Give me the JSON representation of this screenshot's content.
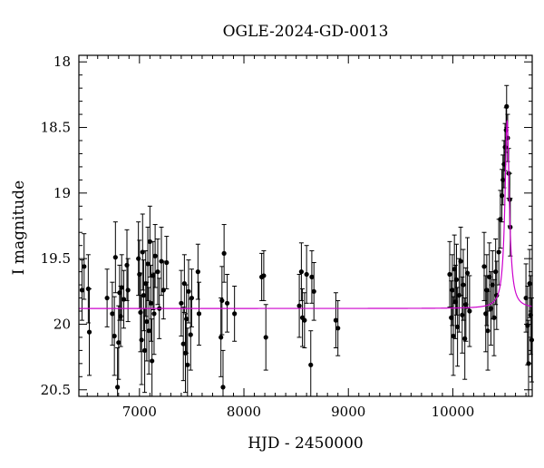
{
  "chart_data": {
    "type": "scatter",
    "title": "OGLE-2024-GD-0013",
    "xlabel": "HJD - 2450000",
    "ylabel": "I magnitude",
    "xlim": [
      6420,
      10760
    ],
    "ylim": [
      20.55,
      17.95
    ],
    "y_inverted": true,
    "grid": false,
    "xticks": [
      7000,
      8000,
      9000,
      10000
    ],
    "yticks": [
      18,
      18.5,
      19,
      19.5,
      20,
      20.5
    ],
    "xtick_labels": [
      "7000",
      "8000",
      "9000",
      "10000"
    ],
    "ytick_labels": [
      "18",
      "18.5",
      "19",
      "19.5",
      "20",
      "20.5"
    ],
    "colors": {
      "points": "#000000",
      "model": "#cc00cc",
      "frame": "#000000"
    },
    "model": {
      "type": "microlensing",
      "baseline_mag": 19.88,
      "peak_mag": 18.45,
      "t0": 10520,
      "width": 25
    },
    "series": [
      {
        "kind": "observations",
        "points": [
          {
            "x": 6450,
            "y": 19.74,
            "err": 0.23
          },
          {
            "x": 6470,
            "y": 19.56,
            "err": 0.25
          },
          {
            "x": 6510,
            "y": 19.73,
            "err": 0.26
          },
          {
            "x": 6520,
            "y": 20.06,
            "err": 0.33
          },
          {
            "x": 6690,
            "y": 19.8,
            "err": 0.22
          },
          {
            "x": 6740,
            "y": 19.92,
            "err": 0.24
          },
          {
            "x": 6760,
            "y": 20.09,
            "err": 0.3
          },
          {
            "x": 6770,
            "y": 19.49,
            "err": 0.27
          },
          {
            "x": 6790,
            "y": 20.48,
            "err": 0.3
          },
          {
            "x": 6800,
            "y": 20.14,
            "err": 0.28
          },
          {
            "x": 6810,
            "y": 19.76,
            "err": 0.21
          },
          {
            "x": 6820,
            "y": 19.94,
            "err": 0.23
          },
          {
            "x": 6830,
            "y": 19.72,
            "err": 0.25
          },
          {
            "x": 6850,
            "y": 19.81,
            "err": 0.22
          },
          {
            "x": 6880,
            "y": 19.55,
            "err": 0.27
          },
          {
            "x": 6890,
            "y": 19.74,
            "err": 0.24
          },
          {
            "x": 6990,
            "y": 19.5,
            "err": 0.28
          },
          {
            "x": 7000,
            "y": 19.62,
            "err": 0.26
          },
          {
            "x": 7010,
            "y": 19.91,
            "err": 0.3
          },
          {
            "x": 7020,
            "y": 20.12,
            "err": 0.34
          },
          {
            "x": 7030,
            "y": 19.45,
            "err": 0.29
          },
          {
            "x": 7040,
            "y": 19.78,
            "err": 0.27
          },
          {
            "x": 7050,
            "y": 20.2,
            "err": 0.32
          },
          {
            "x": 7060,
            "y": 19.69,
            "err": 0.25
          },
          {
            "x": 7070,
            "y": 19.98,
            "err": 0.3
          },
          {
            "x": 7080,
            "y": 19.54,
            "err": 0.28
          },
          {
            "x": 7090,
            "y": 20.05,
            "err": 0.33
          },
          {
            "x": 7100,
            "y": 19.37,
            "err": 0.27
          },
          {
            "x": 7110,
            "y": 19.84,
            "err": 0.29
          },
          {
            "x": 7120,
            "y": 20.28,
            "err": 0.32
          },
          {
            "x": 7130,
            "y": 19.63,
            "err": 0.26
          },
          {
            "x": 7140,
            "y": 19.92,
            "err": 0.31
          },
          {
            "x": 7150,
            "y": 19.48,
            "err": 0.24
          },
          {
            "x": 7175,
            "y": 19.6,
            "err": 0.25
          },
          {
            "x": 7190,
            "y": 19.88,
            "err": 0.23
          },
          {
            "x": 7210,
            "y": 19.52,
            "err": 0.26
          },
          {
            "x": 7230,
            "y": 19.74,
            "err": 0.22
          },
          {
            "x": 7260,
            "y": 19.53,
            "err": 0.2
          },
          {
            "x": 7400,
            "y": 19.84,
            "err": 0.25
          },
          {
            "x": 7420,
            "y": 20.15,
            "err": 0.28
          },
          {
            "x": 7430,
            "y": 19.69,
            "err": 0.22
          },
          {
            "x": 7440,
            "y": 20.22,
            "err": 0.3
          },
          {
            "x": 7450,
            "y": 19.96,
            "err": 0.26
          },
          {
            "x": 7460,
            "y": 20.31,
            "err": 0.28
          },
          {
            "x": 7470,
            "y": 19.75,
            "err": 0.24
          },
          {
            "x": 7490,
            "y": 20.08,
            "err": 0.27
          },
          {
            "x": 7500,
            "y": 19.8,
            "err": 0.22
          },
          {
            "x": 7560,
            "y": 19.6,
            "err": 0.21
          },
          {
            "x": 7570,
            "y": 19.92,
            "err": 0.24
          },
          {
            "x": 7780,
            "y": 20.1,
            "err": 0.3
          },
          {
            "x": 7790,
            "y": 19.82,
            "err": 0.26
          },
          {
            "x": 7800,
            "y": 20.48,
            "err": 0.28
          },
          {
            "x": 7810,
            "y": 19.46,
            "err": 0.22
          },
          {
            "x": 7840,
            "y": 19.84,
            "err": 0.22
          },
          {
            "x": 7910,
            "y": 19.92,
            "err": 0.21
          },
          {
            "x": 8170,
            "y": 19.64,
            "err": 0.18
          },
          {
            "x": 8190,
            "y": 19.63,
            "err": 0.19
          },
          {
            "x": 8210,
            "y": 20.1,
            "err": 0.25
          },
          {
            "x": 8530,
            "y": 19.86,
            "err": 0.24
          },
          {
            "x": 8550,
            "y": 19.6,
            "err": 0.22
          },
          {
            "x": 8560,
            "y": 19.95,
            "err": 0.22
          },
          {
            "x": 8580,
            "y": 19.97,
            "err": 0.21
          },
          {
            "x": 8600,
            "y": 19.62,
            "err": 0.22
          },
          {
            "x": 8640,
            "y": 20.31,
            "err": 0.26
          },
          {
            "x": 8650,
            "y": 19.64,
            "err": 0.2
          },
          {
            "x": 8670,
            "y": 19.75,
            "err": 0.22
          },
          {
            "x": 8880,
            "y": 19.97,
            "err": 0.21
          },
          {
            "x": 8900,
            "y": 20.03,
            "err": 0.21
          },
          {
            "x": 9970,
            "y": 19.62,
            "err": 0.25
          },
          {
            "x": 9985,
            "y": 19.95,
            "err": 0.28
          },
          {
            "x": 9995,
            "y": 19.74,
            "err": 0.27
          },
          {
            "x": 10005,
            "y": 20.09,
            "err": 0.3
          },
          {
            "x": 10015,
            "y": 19.58,
            "err": 0.26
          },
          {
            "x": 10025,
            "y": 19.83,
            "err": 0.28
          },
          {
            "x": 10035,
            "y": 19.66,
            "err": 0.27
          },
          {
            "x": 10045,
            "y": 20.02,
            "err": 0.3
          },
          {
            "x": 10060,
            "y": 19.78,
            "err": 0.28
          },
          {
            "x": 10075,
            "y": 19.52,
            "err": 0.26
          },
          {
            "x": 10090,
            "y": 19.93,
            "err": 0.29
          },
          {
            "x": 10100,
            "y": 19.7,
            "err": 0.27
          },
          {
            "x": 10115,
            "y": 20.11,
            "err": 0.31
          },
          {
            "x": 10125,
            "y": 19.85,
            "err": 0.28
          },
          {
            "x": 10140,
            "y": 19.61,
            "err": 0.27
          },
          {
            "x": 10160,
            "y": 19.9,
            "err": 0.27
          },
          {
            "x": 10300,
            "y": 19.56,
            "err": 0.26
          },
          {
            "x": 10315,
            "y": 19.92,
            "err": 0.29
          },
          {
            "x": 10325,
            "y": 19.74,
            "err": 0.27
          },
          {
            "x": 10335,
            "y": 20.05,
            "err": 0.3
          },
          {
            "x": 10350,
            "y": 19.64,
            "err": 0.26
          },
          {
            "x": 10365,
            "y": 19.88,
            "err": 0.28
          },
          {
            "x": 10380,
            "y": 19.7,
            "err": 0.26
          },
          {
            "x": 10395,
            "y": 19.95,
            "err": 0.29
          },
          {
            "x": 10410,
            "y": 19.6,
            "err": 0.25
          },
          {
            "x": 10420,
            "y": 19.78,
            "err": 0.26
          },
          {
            "x": 10440,
            "y": 19.45,
            "err": 0.25
          },
          {
            "x": 10455,
            "y": 19.2,
            "err": 0.22
          },
          {
            "x": 10470,
            "y": 19.02,
            "err": 0.2
          },
          {
            "x": 10480,
            "y": 18.9,
            "err": 0.19
          },
          {
            "x": 10490,
            "y": 18.78,
            "err": 0.18
          },
          {
            "x": 10500,
            "y": 18.65,
            "err": 0.18
          },
          {
            "x": 10510,
            "y": 18.52,
            "err": 0.17
          },
          {
            "x": 10515,
            "y": 18.34,
            "err": 0.16
          },
          {
            "x": 10525,
            "y": 18.58,
            "err": 0.18
          },
          {
            "x": 10535,
            "y": 18.85,
            "err": 0.19
          },
          {
            "x": 10545,
            "y": 19.05,
            "err": 0.2
          },
          {
            "x": 10550,
            "y": 19.26,
            "err": 0.22
          },
          {
            "x": 10700,
            "y": 19.8,
            "err": 0.26
          },
          {
            "x": 10715,
            "y": 20.01,
            "err": 0.3
          },
          {
            "x": 10725,
            "y": 20.3,
            "err": 0.33
          },
          {
            "x": 10735,
            "y": 19.69,
            "err": 0.26
          },
          {
            "x": 10745,
            "y": 19.93,
            "err": 0.3
          },
          {
            "x": 10755,
            "y": 20.12,
            "err": 0.32
          }
        ]
      }
    ]
  }
}
